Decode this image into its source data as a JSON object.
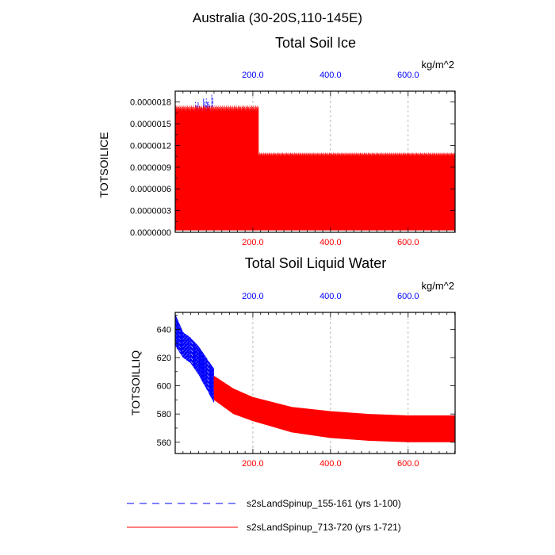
{
  "figure_title": "Australia (30-20S,110-145E)",
  "legend": [
    {
      "label": "s2sLandSpinup_155-161 (yrs 1-100)",
      "color": "#0000ff",
      "style": "dashed"
    },
    {
      "label": "s2sLandSpinup_713-720 (yrs 1-721)",
      "color": "#ff0000",
      "style": "solid"
    }
  ],
  "chart_data": [
    {
      "type": "line",
      "title": "Total Soil Ice",
      "units": "kg/m^2",
      "ylabel": "TOTSOILICE",
      "xlabel": "",
      "xlim": [
        0,
        721
      ],
      "ylim": [
        0,
        1.95e-06
      ],
      "yticks": [
        0,
        3e-07,
        6e-07,
        9e-07,
        1.2e-06,
        1.5e-06,
        1.8e-06
      ],
      "ytick_labels": [
        "0.0000000",
        "0.0000003",
        "0.0000006",
        "0.0000009",
        "0.0000012",
        "0.0000015",
        "0.0000018"
      ],
      "bottom_xticks": [
        200,
        400,
        600
      ],
      "bottom_xtick_labels": [
        "200.0",
        "400.0",
        "600.0"
      ],
      "top_xticks": [
        200,
        400,
        600
      ],
      "top_xtick_labels": [
        "200.0",
        "400.0",
        "600.0"
      ],
      "grid": "vertical dashed at x ticks",
      "series": [
        {
          "name": "s2sLandSpinup_155-161 (yrs 1-100)",
          "color": "#0000ff",
          "dash": "dashed",
          "x_range": [
            1,
            100
          ],
          "annual_peaks": [
            1.35e-06,
            1.6e-06,
            1.7e-06,
            1.8e-06,
            1.85e-06,
            1.9e-06
          ],
          "secondary_peaks": [
            8.2e-07,
            1.1e-06,
            1.28e-06,
            1.3e-06,
            1.35e-06
          ],
          "baseline": 4e-08
        },
        {
          "name": "s2sLandSpinup_713-720 (yrs 1-721)",
          "color": "#ff0000",
          "dash": "solid",
          "x_range": [
            1,
            721
          ],
          "annual_peaks_x_lt_215": 1.75e-06,
          "annual_peaks_x_gt_215": 1.1e-06,
          "secondary_peaks_x_lt_215": 9e-07,
          "secondary_peaks_x_gt_215": 1.8e-07,
          "baseline": 3e-08
        }
      ]
    },
    {
      "type": "line",
      "title": "Total Soil Liquid Water",
      "units": "kg/m^2",
      "ylabel": "TOTSOILLIQ",
      "xlabel": "",
      "xlim": [
        0,
        721
      ],
      "ylim": [
        552,
        652
      ],
      "yticks": [
        560,
        580,
        600,
        620,
        640
      ],
      "ytick_labels": [
        "560",
        "580",
        "600",
        "620",
        "640"
      ],
      "bottom_xticks": [
        200,
        400,
        600
      ],
      "bottom_xtick_labels": [
        "200.0",
        "400.0",
        "600.0"
      ],
      "top_xticks": [
        200,
        400,
        600
      ],
      "top_xtick_labels": [
        "200.0",
        "400.0",
        "600.0"
      ],
      "grid": "vertical dashed at x ticks",
      "series": [
        {
          "name": "s2sLandSpinup_155-161 (yrs 1-100)",
          "color": "#0000ff",
          "dash": "dashed",
          "x": [
            1,
            20,
            40,
            60,
            80,
            100
          ],
          "upper": [
            650,
            638,
            634,
            628,
            620,
            612
          ],
          "lower": [
            628,
            620,
            616,
            608,
            598,
            588
          ]
        },
        {
          "name": "s2sLandSpinup_713-720 (yrs 1-721)",
          "color": "#ff0000",
          "dash": "solid",
          "x": [
            100,
            150,
            200,
            300,
            400,
            500,
            600,
            721
          ],
          "upper": [
            607,
            598,
            592,
            585,
            582,
            580,
            579,
            579
          ],
          "lower": [
            590,
            580,
            575,
            567,
            563,
            561,
            560,
            560
          ]
        }
      ]
    }
  ]
}
